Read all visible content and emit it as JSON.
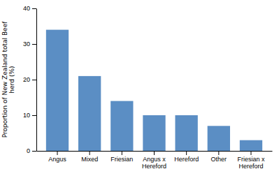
{
  "chart_data": {
    "type": "bar",
    "categories": [
      "Angus",
      "Mixed",
      "Friesian",
      "Angus x\nHereford",
      "Hereford",
      "Other",
      "Friesian x\nHereford"
    ],
    "values": [
      34,
      21,
      14,
      10,
      10,
      7,
      3
    ],
    "color": "#5b8ec4",
    "ylabel": "Proportion of New Zealand total Beef\nherd (%)",
    "ylim": [
      0,
      40
    ],
    "yticks": [
      0,
      10,
      20,
      30,
      40
    ]
  }
}
